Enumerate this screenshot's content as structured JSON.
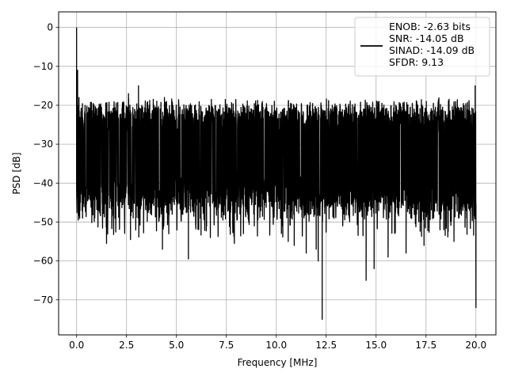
{
  "chart_data": {
    "type": "line",
    "title": "",
    "xlabel": "Frequency [MHz]",
    "ylabel": "PSD [dB]",
    "xlim": [
      -0.9,
      21.0
    ],
    "ylim": [
      -79,
      4
    ],
    "grid": true,
    "xticks": [
      0.0,
      2.5,
      5.0,
      7.5,
      10.0,
      12.5,
      15.0,
      17.5,
      20.0
    ],
    "xtick_labels": [
      "0.0",
      "2.5",
      "5.0",
      "7.5",
      "10.0",
      "12.5",
      "15.0",
      "17.5",
      "20.0"
    ],
    "yticks": [
      0,
      -10,
      -20,
      -30,
      -40,
      -50,
      -60,
      -70
    ],
    "ytick_labels": [
      "0",
      "−10",
      "−20",
      "−30",
      "−40",
      "−50",
      "−60",
      "−70"
    ],
    "legend": {
      "placement": "top-right",
      "entries": [
        "ENOB: -2.63 bits",
        "SNR: -14.05 dB",
        "SINAD: -14.09 dB",
        "SFDR: 9.13"
      ]
    },
    "series": [
      {
        "color": "#000000",
        "x_range": [
          0.0,
          20.0
        ],
        "noise_floor_dB": -32,
        "typical_upper_dB": -21,
        "typical_lower_dB": -45,
        "peaks": [
          {
            "x": 0.0,
            "y": 0
          },
          {
            "x": 0.05,
            "y": -11
          },
          {
            "x": 0.12,
            "y": -18
          },
          {
            "x": 0.3,
            "y": -44
          },
          {
            "x": 0.3,
            "y": -49
          },
          {
            "x": 1.5,
            "y": -55.5
          },
          {
            "x": 2.6,
            "y": -17
          },
          {
            "x": 3.1,
            "y": -15
          },
          {
            "x": 2.7,
            "y": -54.5
          },
          {
            "x": 4.3,
            "y": -55.5
          },
          {
            "x": 4.4,
            "y": -18
          },
          {
            "x": 4.3,
            "y": -57
          },
          {
            "x": 5.6,
            "y": -59.5
          },
          {
            "x": 6.7,
            "y": -54
          },
          {
            "x": 7.9,
            "y": -55.5
          },
          {
            "x": 8.9,
            "y": -51
          },
          {
            "x": 10.6,
            "y": -55
          },
          {
            "x": 10.9,
            "y": -56
          },
          {
            "x": 11.5,
            "y": -58
          },
          {
            "x": 12.0,
            "y": -57
          },
          {
            "x": 12.3,
            "y": -75
          },
          {
            "x": 12.3,
            "y": -62
          },
          {
            "x": 12.1,
            "y": -60
          },
          {
            "x": 14.5,
            "y": -65
          },
          {
            "x": 14.9,
            "y": -62
          },
          {
            "x": 15.6,
            "y": -59
          },
          {
            "x": 16.5,
            "y": -58
          },
          {
            "x": 17.4,
            "y": -56
          },
          {
            "x": 18.2,
            "y": -52
          },
          {
            "x": 18.9,
            "y": -55
          },
          {
            "x": 19.96,
            "y": -15
          },
          {
            "x": 20.0,
            "y": -72
          }
        ]
      }
    ]
  }
}
